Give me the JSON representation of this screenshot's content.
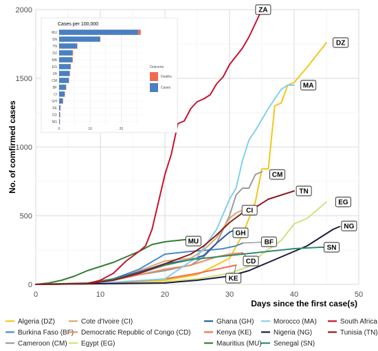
{
  "chart_data": [
    {
      "type": "line",
      "xlabel": "Days since the first case(s)",
      "ylabel": "No. of comfirmed cases",
      "xlim": [
        0,
        50
      ],
      "ylim": [
        0,
        2000
      ],
      "x_ticks": [
        0,
        10,
        20,
        30,
        40,
        50
      ],
      "y_ticks": [
        0,
        500,
        1000,
        1500,
        2000
      ],
      "grid": true,
      "legend_placement": "bottom",
      "series": [
        {
          "name": "Algeria (DZ)",
          "label": "DZ",
          "color": "#f5c518",
          "x": [
            0,
            10,
            20,
            25,
            30,
            32,
            34,
            35,
            36,
            37,
            38,
            39,
            40,
            42,
            44,
            45
          ],
          "y": [
            0,
            5,
            30,
            70,
            190,
            360,
            600,
            840,
            840,
            1300,
            1320,
            1450,
            1470,
            1580,
            1700,
            1760
          ]
        },
        {
          "name": "Burkina Faso (BF)",
          "label": "BF",
          "color": "#4d87c7",
          "x": [
            0,
            8,
            12,
            16,
            20,
            24,
            27,
            29,
            30,
            31,
            32
          ],
          "y": [
            0,
            5,
            40,
            110,
            220,
            240,
            250,
            260,
            270,
            280,
            300
          ]
        },
        {
          "name": "Cameroon (CM)",
          "label": "CM",
          "color": "#999999",
          "x": [
            0,
            8,
            12,
            16,
            20,
            24,
            26,
            28,
            30,
            31,
            32,
            33,
            34,
            35
          ],
          "y": [
            0,
            5,
            30,
            70,
            100,
            140,
            200,
            300,
            500,
            650,
            700,
            700,
            800,
            820
          ]
        },
        {
          "name": "Cote d'Ivoire (CI)",
          "label": "CI",
          "color": "#d8a86c",
          "x": [
            0,
            8,
            12,
            16,
            20,
            24,
            26,
            28,
            30,
            31,
            32
          ],
          "y": [
            0,
            5,
            30,
            100,
            170,
            190,
            250,
            340,
            480,
            520,
            540
          ]
        },
        {
          "name": "Democratic Republic of Congo (CD)",
          "label": "CD",
          "color": "#f08a5d",
          "x": [
            0,
            8,
            12,
            16,
            20,
            24,
            26,
            28,
            30,
            32
          ],
          "y": [
            0,
            5,
            30,
            70,
            110,
            140,
            170,
            200,
            220,
            230
          ]
        },
        {
          "name": "Egypt (EG)",
          "label": "EG",
          "color": "#d4e07a",
          "x": [
            0,
            10,
            20,
            25,
            30,
            33,
            35,
            38,
            40,
            42,
            44,
            45
          ],
          "y": [
            0,
            10,
            20,
            40,
            80,
            130,
            220,
            320,
            440,
            480,
            560,
            600
          ]
        },
        {
          "name": "Ghana (GH)",
          "label": "GH",
          "color": "#1f5aa6",
          "x": [
            0,
            8,
            12,
            16,
            20,
            24,
            26,
            28,
            30,
            31
          ],
          "y": [
            0,
            5,
            40,
            90,
            150,
            180,
            210,
            300,
            380,
            400
          ]
        },
        {
          "name": "Kenya (KE)",
          "label": "KE",
          "color": "#f26b4f",
          "x": [
            0,
            10,
            15,
            20,
            25,
            28,
            30,
            31
          ],
          "y": [
            0,
            10,
            20,
            40,
            80,
            110,
            130,
            140
          ]
        },
        {
          "name": "Mauritius (MU)",
          "label": "MU",
          "color": "#2e7d32",
          "x": [
            0,
            2,
            4,
            6,
            8,
            10,
            12,
            14,
            16,
            18,
            20,
            22,
            24
          ],
          "y": [
            0,
            10,
            30,
            60,
            100,
            130,
            160,
            200,
            240,
            290,
            310,
            320,
            330
          ]
        },
        {
          "name": "Morocco (MA)",
          "label": "MA",
          "color": "#7fcfef",
          "x": [
            0,
            10,
            20,
            25,
            28,
            30,
            31,
            32,
            33,
            34,
            35,
            36,
            37,
            38,
            39,
            40
          ],
          "y": [
            0,
            10,
            40,
            200,
            400,
            620,
            700,
            900,
            1050,
            1120,
            1200,
            1280,
            1350,
            1420,
            1450,
            1450
          ]
        },
        {
          "name": "Nigeria (NG)",
          "label": "NG",
          "color": "#1a1a3e",
          "x": [
            0,
            10,
            20,
            25,
            30,
            33,
            36,
            38,
            40,
            42,
            44,
            46,
            47
          ],
          "y": [
            0,
            5,
            10,
            30,
            60,
            100,
            160,
            200,
            240,
            280,
            340,
            400,
            420
          ]
        },
        {
          "name": "Senegal (SN)",
          "label": "SN",
          "color": "#2f8b6b",
          "x": [
            0,
            8,
            12,
            16,
            20,
            24,
            28,
            32,
            36,
            40,
            44,
            45
          ],
          "y": [
            0,
            10,
            40,
            80,
            140,
            180,
            200,
            220,
            240,
            260,
            270,
            270
          ]
        },
        {
          "name": "South Africa",
          "label": "ZA",
          "color": "#c8102e",
          "x": [
            0,
            8,
            10,
            12,
            14,
            16,
            17,
            18,
            19,
            20,
            21,
            22,
            23,
            24,
            25,
            26,
            27,
            28,
            29,
            30,
            31,
            32,
            33,
            34,
            35
          ],
          "y": [
            0,
            5,
            30,
            80,
            170,
            240,
            280,
            400,
            600,
            800,
            950,
            1170,
            1190,
            1280,
            1330,
            1350,
            1380,
            1460,
            1510,
            1600,
            1660,
            1720,
            1800,
            1900,
            2000
          ]
        },
        {
          "name": "Tunisia (TN)",
          "label": "TN",
          "color": "#8b1a1a",
          "x": [
            0,
            8,
            12,
            16,
            20,
            24,
            26,
            28,
            30,
            32,
            34,
            36,
            38,
            40
          ],
          "y": [
            0,
            5,
            30,
            80,
            150,
            220,
            280,
            360,
            450,
            520,
            560,
            620,
            650,
            680
          ]
        }
      ]
    },
    {
      "type": "bar",
      "title": "Cases per 100,000",
      "orientation": "horizontal",
      "categories": [
        "MU",
        "SN",
        "TN",
        "DZ",
        "MA",
        "EG",
        "ZA",
        "CM",
        "BF",
        "CI",
        "GH",
        "KE",
        "CD",
        "NG"
      ],
      "x_ticks": [
        0,
        10,
        20
      ],
      "xlim": [
        0,
        27
      ],
      "legend_title": "Outcome",
      "series": [
        {
          "name": "Cases",
          "color": "#4a80c0",
          "values": [
            25.5,
            13.2,
            5.8,
            4.2,
            4.2,
            3.7,
            3.4,
            3.1,
            2.2,
            1.8,
            1.2,
            0.4,
            0.3,
            0.2
          ]
        },
        {
          "name": "Deaths",
          "color": "#f26b4f",
          "values": [
            0.8,
            0.1,
            0.1,
            0.3,
            0.2,
            0.1,
            0.1,
            0.1,
            0.1,
            0.05,
            0.05,
            0.02,
            0.02,
            0.01
          ]
        }
      ]
    }
  ]
}
